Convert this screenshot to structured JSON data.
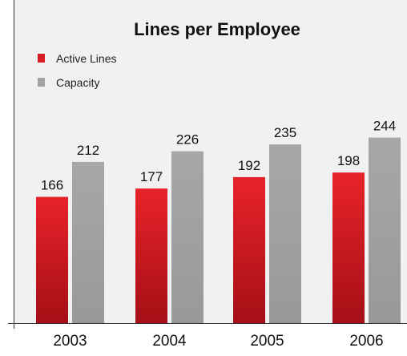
{
  "chart_data": {
    "type": "bar",
    "title": "Lines per Employee",
    "categories": [
      "2003",
      "2004",
      "2005",
      "2006"
    ],
    "series": [
      {
        "name": "Active Lines",
        "values": [
          166,
          177,
          192,
          198
        ],
        "color": "#d81e24"
      },
      {
        "name": "Capacity",
        "values": [
          212,
          226,
          235,
          244
        ],
        "color": "#a2a2a2"
      }
    ],
    "ylim": [
      0,
      300
    ],
    "legend_position": "top-left",
    "grid": false,
    "background": "#f1f1f1",
    "data_labels": true
  }
}
